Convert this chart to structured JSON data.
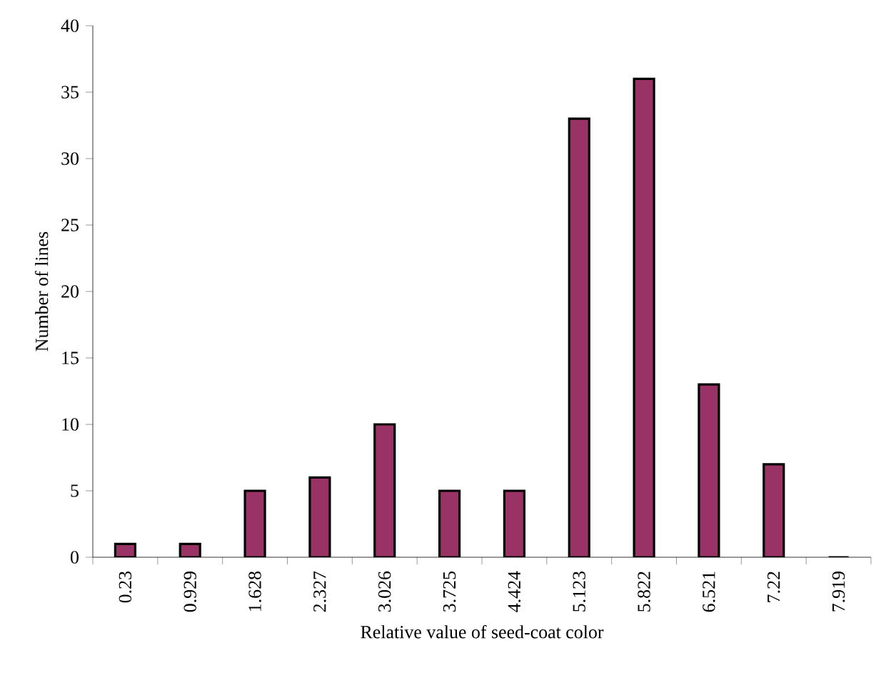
{
  "chart_data": {
    "type": "bar",
    "xlabel": "Relative value of seed-coat color",
    "ylabel": "Number of lines",
    "categories": [
      "0.23",
      "0.929",
      "1.628",
      "2.327",
      "3.026",
      "3.725",
      "4.424",
      "5.123",
      "5.822",
      "6.521",
      "7.22",
      "7.919"
    ],
    "values": [
      1,
      1,
      5,
      6,
      10,
      5,
      5,
      33,
      36,
      13,
      7,
      0
    ],
    "color": "#993366",
    "ylim": [
      0,
      40
    ],
    "yticks": [
      0,
      5,
      10,
      15,
      20,
      25,
      30,
      35,
      40
    ]
  }
}
